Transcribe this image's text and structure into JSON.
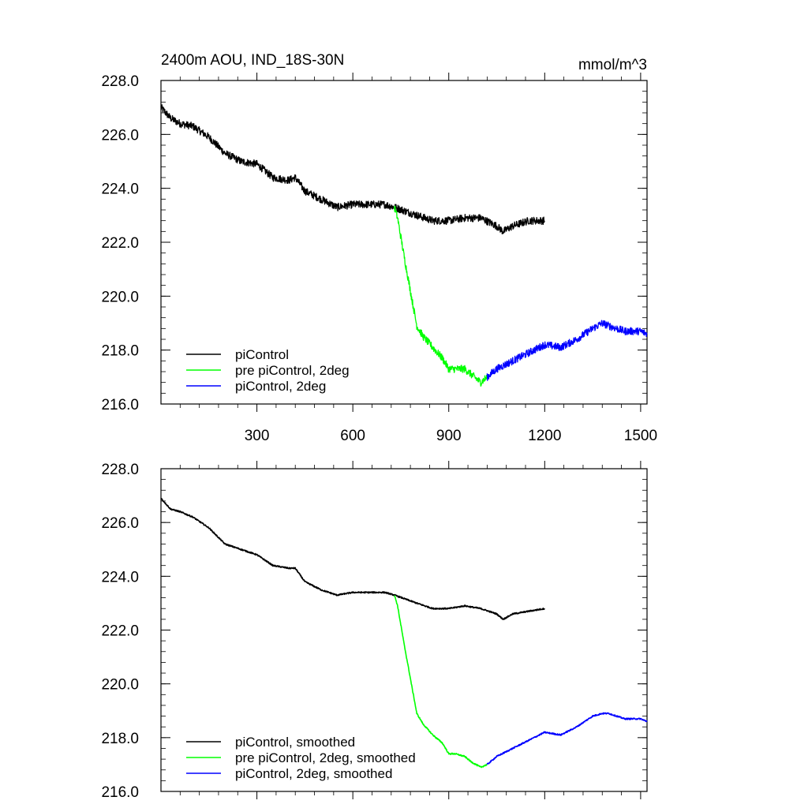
{
  "chart_data": [
    {
      "type": "line",
      "title": "2400m AOU, IND_18S-30N",
      "units": "mmol/m^3",
      "xlabel": "",
      "ylabel": "",
      "xlim": [
        0,
        1520
      ],
      "ylim": [
        216.0,
        228.0
      ],
      "xticks": [
        300,
        600,
        900,
        1200,
        1500
      ],
      "xtick_labels": [
        "300",
        "600",
        "900",
        "1200",
        "1500"
      ],
      "yticks": [
        216.0,
        218.0,
        220.0,
        222.0,
        224.0,
        226.0,
        228.0
      ],
      "ytick_labels": [
        "216.0",
        "218.0",
        "220.0",
        "222.0",
        "224.0",
        "226.0",
        "228.0"
      ],
      "legend_position": "bottom-left",
      "noisy": true,
      "series": [
        {
          "name": "piControl",
          "color": "#000000",
          "x": [
            0,
            30,
            60,
            100,
            150,
            200,
            250,
            300,
            350,
            400,
            420,
            450,
            500,
            550,
            600,
            650,
            700,
            730,
            800,
            850,
            900,
            950,
            1000,
            1050,
            1070,
            1100,
            1150,
            1200
          ],
          "y": [
            227.0,
            226.6,
            226.4,
            226.3,
            225.9,
            225.3,
            225.0,
            224.9,
            224.4,
            224.3,
            224.4,
            223.9,
            223.6,
            223.3,
            223.4,
            223.4,
            223.4,
            223.3,
            223.0,
            222.8,
            222.8,
            222.9,
            222.9,
            222.6,
            222.4,
            222.6,
            222.8,
            222.8
          ]
        },
        {
          "name": "pre piControl, 2deg",
          "color": "#00ff00",
          "x": [
            730,
            740,
            760,
            780,
            800,
            820,
            850,
            880,
            900,
            920,
            950,
            970,
            1000,
            1020
          ],
          "y": [
            223.3,
            222.9,
            221.5,
            220.2,
            218.9,
            218.5,
            218.1,
            217.7,
            217.3,
            217.3,
            217.3,
            217.1,
            216.8,
            217.0
          ]
        },
        {
          "name": "piControl, 2deg",
          "color": "#0000ff",
          "x": [
            1020,
            1050,
            1100,
            1150,
            1200,
            1250,
            1300,
            1350,
            1380,
            1400,
            1450,
            1500,
            1520
          ],
          "y": [
            217.0,
            217.3,
            217.6,
            217.9,
            218.2,
            218.1,
            218.4,
            218.8,
            219.0,
            218.9,
            218.7,
            218.7,
            218.6
          ]
        }
      ]
    },
    {
      "type": "line",
      "title": "",
      "units": "",
      "xlabel": "",
      "ylabel": "",
      "xlim": [
        0,
        1520
      ],
      "ylim": [
        216.0,
        228.0
      ],
      "xticks": [
        300,
        600,
        900,
        1200,
        1500
      ],
      "xtick_labels": [],
      "yticks": [
        216.0,
        218.0,
        220.0,
        222.0,
        224.0,
        226.0,
        228.0
      ],
      "ytick_labels": [
        "216.0",
        "218.0",
        "220.0",
        "222.0",
        "224.0",
        "226.0",
        "228.0"
      ],
      "legend_position": "bottom-left",
      "noisy": false,
      "series": [
        {
          "name": "piControl, smoothed",
          "color": "#000000",
          "x": [
            0,
            30,
            60,
            100,
            150,
            200,
            250,
            300,
            350,
            400,
            420,
            450,
            500,
            550,
            600,
            650,
            700,
            730,
            800,
            850,
            900,
            950,
            1000,
            1050,
            1070,
            1100,
            1150,
            1200
          ],
          "y": [
            226.9,
            226.5,
            226.4,
            226.2,
            225.8,
            225.2,
            225.0,
            224.8,
            224.4,
            224.3,
            224.3,
            223.8,
            223.5,
            223.3,
            223.4,
            223.4,
            223.4,
            223.3,
            223.0,
            222.8,
            222.8,
            222.9,
            222.8,
            222.6,
            222.4,
            222.6,
            222.7,
            222.8
          ]
        },
        {
          "name": "pre piControl, 2deg, smoothed",
          "color": "#00ff00",
          "x": [
            730,
            740,
            760,
            780,
            800,
            820,
            850,
            880,
            900,
            920,
            950,
            970,
            1000,
            1020
          ],
          "y": [
            223.3,
            222.9,
            221.5,
            220.2,
            218.9,
            218.5,
            218.1,
            217.8,
            217.4,
            217.4,
            217.3,
            217.1,
            216.9,
            217.0
          ]
        },
        {
          "name": "piControl, 2deg, smoothed",
          "color": "#0000ff",
          "x": [
            1020,
            1050,
            1100,
            1150,
            1200,
            1250,
            1300,
            1350,
            1380,
            1400,
            1450,
            1500,
            1520
          ],
          "y": [
            217.0,
            217.3,
            217.6,
            217.9,
            218.2,
            218.1,
            218.4,
            218.8,
            218.9,
            218.9,
            218.7,
            218.7,
            218.6
          ]
        }
      ]
    }
  ]
}
